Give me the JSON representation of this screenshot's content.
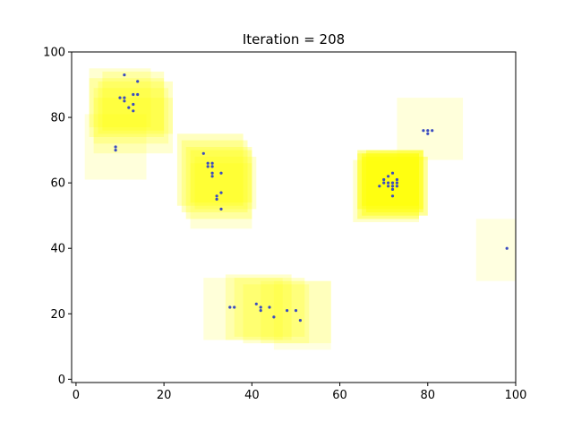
{
  "chart_data": {
    "type": "scatter",
    "title": "Iteration = 208",
    "xlabel": "",
    "ylabel": "",
    "xlim": [
      -1,
      100
    ],
    "ylim": [
      -1,
      100
    ],
    "x_ticks": [
      "0",
      "20",
      "40",
      "60",
      "80",
      "100"
    ],
    "x_tick_values": [
      0,
      20,
      40,
      60,
      80,
      100
    ],
    "y_ticks": [
      "0",
      "20",
      "40",
      "60",
      "80",
      "100"
    ],
    "y_tick_values": [
      0,
      20,
      40,
      60,
      80,
      100
    ],
    "grid": false,
    "point_color": "#3b4cc0",
    "box_color": "#ffff00",
    "boxes": [
      {
        "x0": 4,
        "x1": 22,
        "y0": 69,
        "y1": 86,
        "opacity": 0.18
      },
      {
        "x0": 4,
        "x1": 21,
        "y0": 72,
        "y1": 89,
        "opacity": 0.2
      },
      {
        "x0": 3,
        "x1": 20,
        "y0": 74,
        "y1": 92,
        "opacity": 0.22
      },
      {
        "x0": 5,
        "x1": 22,
        "y0": 75,
        "y1": 91,
        "opacity": 0.22
      },
      {
        "x0": 6,
        "x1": 20,
        "y0": 76,
        "y1": 94,
        "opacity": 0.22
      },
      {
        "x0": 3,
        "x1": 17,
        "y0": 77,
        "y1": 95,
        "opacity": 0.18
      },
      {
        "x0": 2,
        "x1": 16,
        "y0": 61,
        "y1": 81,
        "opacity": 0.14
      },
      {
        "x0": 23,
        "x1": 38,
        "y0": 53,
        "y1": 75,
        "opacity": 0.25
      },
      {
        "x0": 24,
        "x1": 39,
        "y0": 51,
        "y1": 73,
        "opacity": 0.25
      },
      {
        "x0": 25,
        "x1": 40,
        "y0": 49,
        "y1": 71,
        "opacity": 0.25
      },
      {
        "x0": 26,
        "x1": 40,
        "y0": 54,
        "y1": 70,
        "opacity": 0.25
      },
      {
        "x0": 27,
        "x1": 41,
        "y0": 52,
        "y1": 68,
        "opacity": 0.2
      },
      {
        "x0": 26,
        "x1": 40,
        "y0": 46,
        "y1": 66,
        "opacity": 0.16
      },
      {
        "x0": 64,
        "x1": 79,
        "y0": 52,
        "y1": 70,
        "opacity": 0.4
      },
      {
        "x0": 65,
        "x1": 80,
        "y0": 50,
        "y1": 68,
        "opacity": 0.4
      },
      {
        "x0": 64,
        "x1": 78,
        "y0": 49,
        "y1": 69,
        "opacity": 0.38
      },
      {
        "x0": 66,
        "x1": 79,
        "y0": 51,
        "y1": 70,
        "opacity": 0.4
      },
      {
        "x0": 65,
        "x1": 78,
        "y0": 53,
        "y1": 69,
        "opacity": 0.4
      },
      {
        "x0": 63,
        "x1": 78,
        "y0": 48,
        "y1": 67,
        "opacity": 0.2
      },
      {
        "x0": 73,
        "x1": 88,
        "y0": 67,
        "y1": 86,
        "opacity": 0.14
      },
      {
        "x0": 91,
        "x1": 100,
        "y0": 30,
        "y1": 49,
        "opacity": 0.12
      },
      {
        "x0": 29,
        "x1": 47,
        "y0": 12,
        "y1": 31,
        "opacity": 0.15
      },
      {
        "x0": 34,
        "x1": 49,
        "y0": 12,
        "y1": 32,
        "opacity": 0.2
      },
      {
        "x0": 36,
        "x1": 52,
        "y0": 13,
        "y1": 31,
        "opacity": 0.2
      },
      {
        "x0": 38,
        "x1": 53,
        "y0": 11,
        "y1": 29,
        "opacity": 0.18
      },
      {
        "x0": 42,
        "x1": 58,
        "y0": 11,
        "y1": 30,
        "opacity": 0.16
      },
      {
        "x0": 45,
        "x1": 58,
        "y0": 9,
        "y1": 30,
        "opacity": 0.12
      }
    ],
    "points": [
      {
        "x": 11,
        "y": 93
      },
      {
        "x": 14,
        "y": 91
      },
      {
        "x": 13,
        "y": 87
      },
      {
        "x": 14,
        "y": 87
      },
      {
        "x": 10,
        "y": 86
      },
      {
        "x": 11,
        "y": 86
      },
      {
        "x": 11,
        "y": 85
      },
      {
        "x": 13,
        "y": 84
      },
      {
        "x": 12,
        "y": 83
      },
      {
        "x": 13,
        "y": 82
      },
      {
        "x": 9,
        "y": 71
      },
      {
        "x": 9,
        "y": 70
      },
      {
        "x": 29,
        "y": 69
      },
      {
        "x": 30,
        "y": 66
      },
      {
        "x": 31,
        "y": 66
      },
      {
        "x": 30,
        "y": 65
      },
      {
        "x": 31,
        "y": 65
      },
      {
        "x": 31,
        "y": 63
      },
      {
        "x": 33,
        "y": 63
      },
      {
        "x": 31,
        "y": 62
      },
      {
        "x": 33,
        "y": 57
      },
      {
        "x": 32,
        "y": 56
      },
      {
        "x": 32,
        "y": 55
      },
      {
        "x": 33,
        "y": 52
      },
      {
        "x": 79,
        "y": 76
      },
      {
        "x": 80,
        "y": 76
      },
      {
        "x": 81,
        "y": 76
      },
      {
        "x": 80,
        "y": 75
      },
      {
        "x": 72,
        "y": 63
      },
      {
        "x": 71,
        "y": 62
      },
      {
        "x": 70,
        "y": 61
      },
      {
        "x": 73,
        "y": 61
      },
      {
        "x": 71,
        "y": 60
      },
      {
        "x": 72,
        "y": 60
      },
      {
        "x": 73,
        "y": 60
      },
      {
        "x": 70,
        "y": 60
      },
      {
        "x": 69,
        "y": 59
      },
      {
        "x": 71,
        "y": 59
      },
      {
        "x": 72,
        "y": 59
      },
      {
        "x": 73,
        "y": 59
      },
      {
        "x": 72,
        "y": 58
      },
      {
        "x": 72,
        "y": 56
      },
      {
        "x": 98,
        "y": 40
      },
      {
        "x": 35,
        "y": 22
      },
      {
        "x": 36,
        "y": 22
      },
      {
        "x": 41,
        "y": 23
      },
      {
        "x": 42,
        "y": 22
      },
      {
        "x": 44,
        "y": 22
      },
      {
        "x": 42,
        "y": 21
      },
      {
        "x": 48,
        "y": 21
      },
      {
        "x": 50,
        "y": 21
      },
      {
        "x": 45,
        "y": 19
      },
      {
        "x": 51,
        "y": 18
      }
    ]
  }
}
